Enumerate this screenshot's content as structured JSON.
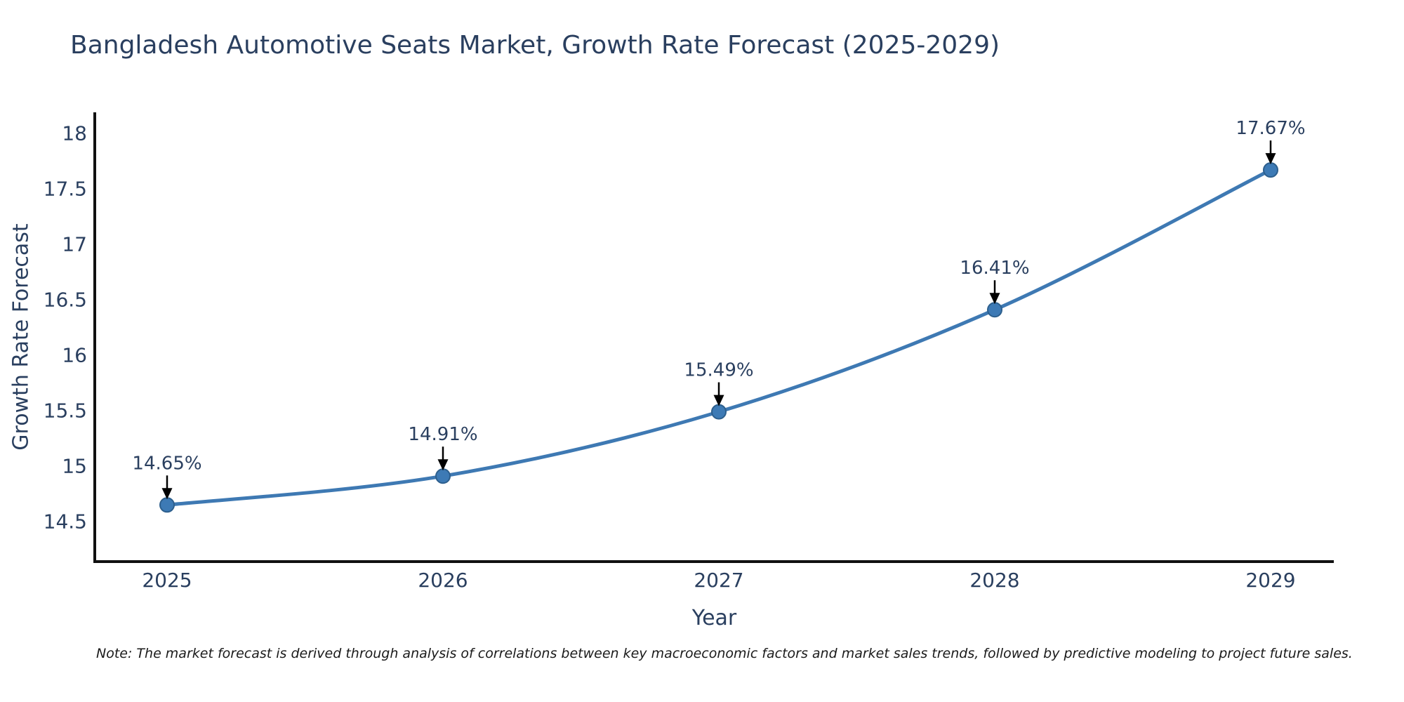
{
  "page": {
    "note": "Note: The market forecast is derived through analysis of correlations between key macroeconomic factors and market sales trends, followed by predictive modeling to project future sales."
  },
  "chart_data": {
    "type": "line",
    "title": "Bangladesh Automotive Seats Market, Growth Rate Forecast (2025-2029)",
    "xlabel": "Year",
    "ylabel": "Growth Rate Forecast",
    "categories": [
      "2025",
      "2026",
      "2027",
      "2028",
      "2029"
    ],
    "series": [
      {
        "name": "Growth Rate Forecast",
        "values": [
          14.65,
          14.91,
          15.49,
          16.41,
          17.67
        ]
      }
    ],
    "point_labels": [
      "14.65%",
      "14.91%",
      "15.49%",
      "16.41%",
      "17.67%"
    ],
    "yticks": [
      14.5,
      15,
      15.5,
      16,
      16.5,
      17,
      17.5,
      18
    ],
    "ylim": [
      14.14,
      18.19
    ],
    "grid": false,
    "legend_position": "none",
    "line_shape": "spline",
    "colors": {
      "line": "#3e79b3",
      "marker": "#3d7ab5",
      "marker_edge": "#2d5f8d",
      "axis": "#111111",
      "text": "#2a3f5f",
      "annotation_arrow": "#000000",
      "background": "#ffffff"
    }
  }
}
